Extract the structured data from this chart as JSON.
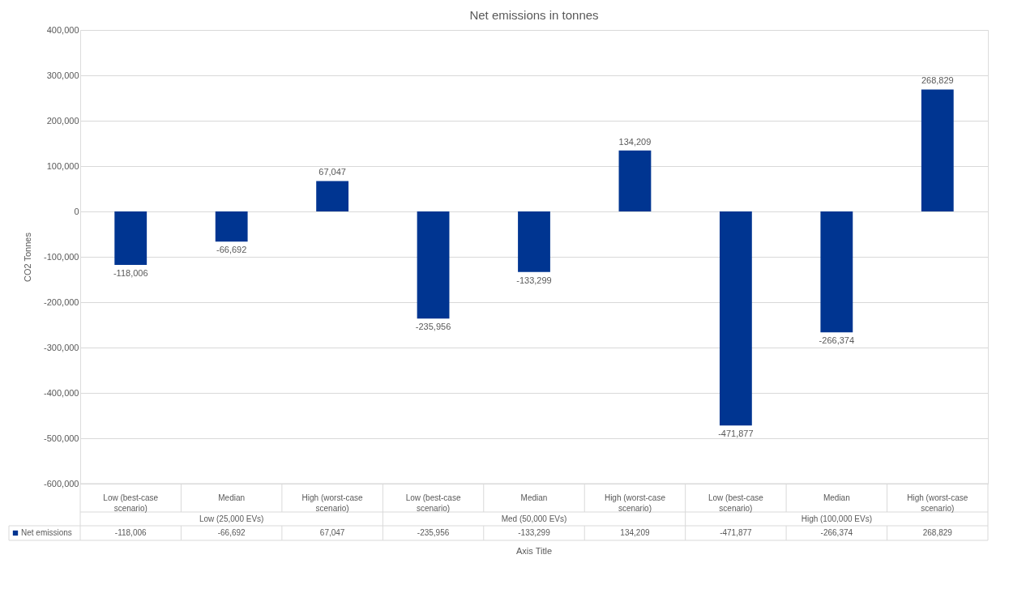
{
  "chart_data": {
    "type": "bar",
    "title": "Net emissions in tonnes",
    "xlabel": "Axis Title",
    "ylabel": "CO2 Tonnes",
    "categories": [
      "Low (best-case scenario)",
      "Median",
      "High (worst-case scenario)",
      "Low (best-case scenario)",
      "Median",
      "High (worst-case scenario)",
      "Low (best-case scenario)",
      "Median",
      "High (worst-case scenario)"
    ],
    "series": [
      {
        "name": "Net emissions",
        "color": "#003591",
        "values": [
          -118006,
          -66692,
          67047,
          -235956,
          -133299,
          134209,
          -471877,
          -266374,
          268829
        ],
        "value_labels": [
          "-118,006",
          "-66,692",
          "67,047",
          "-235,956",
          "-133,299",
          "134,209",
          "-471,877",
          "-266,374",
          "268,829"
        ]
      }
    ],
    "ylim": [
      -600000,
      400000
    ],
    "yticks": [
      {
        "value": -600000,
        "label": "-600,000"
      },
      {
        "value": -500000,
        "label": "-500,000"
      },
      {
        "value": -400000,
        "label": "-400,000"
      },
      {
        "value": -300000,
        "label": "-300,000"
      },
      {
        "value": -200000,
        "label": "-200,000"
      },
      {
        "value": -100000,
        "label": "-100,000"
      },
      0,
      {
        "value": 100000,
        "label": "100,000"
      },
      {
        "value": 200000,
        "label": "200,000"
      },
      {
        "value": 300000,
        "label": "300,000"
      },
      {
        "value": 400000,
        "label": "400,000"
      }
    ],
    "grid": "y",
    "legend": "bottom",
    "annotations": [
      "Low (25,000 EVs)",
      "Med (50,000 EVs)",
      "High (100,000 EVs)"
    ]
  }
}
